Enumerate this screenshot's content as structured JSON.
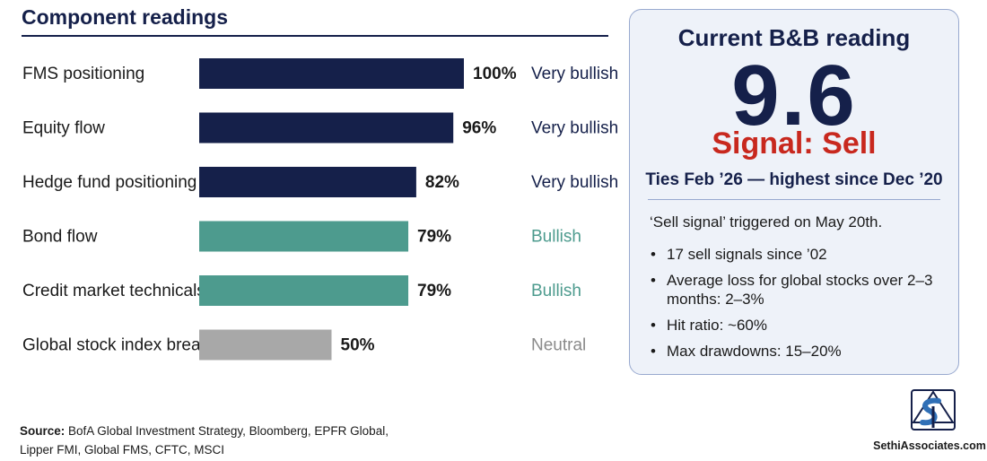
{
  "title": "Component readings",
  "chart_data": {
    "type": "bar",
    "orientation": "horizontal",
    "xlim": [
      0,
      100
    ],
    "categories": [
      "FMS positioning",
      "Equity flow",
      "Hedge fund positioning",
      "Bond flow",
      "Credit market technicals",
      "Global stock index breadth"
    ],
    "values": [
      100,
      96,
      82,
      79,
      79,
      50
    ],
    "value_labels": [
      "100%",
      "96%",
      "82%",
      "79%",
      "79%",
      "50%"
    ],
    "ratings": [
      "Very bullish",
      "Very bullish",
      "Very bullish",
      "Bullish",
      "Bullish",
      "Neutral"
    ],
    "rating_colors": {
      "Very bullish": "#15204a",
      "Bullish": "#4d9b8e",
      "Neutral": "#8a8a8a"
    },
    "bar_colors": {
      "Very bullish": "#15204a",
      "Bullish": "#4d9b8e",
      "Neutral": "#a8a8a8"
    }
  },
  "panel": {
    "heading": "Current B&B reading",
    "value": "9.6",
    "signal": "Signal: Sell",
    "subtitle": "Ties Feb ’26 — highest since Dec ’20",
    "lead": "‘Sell signal’ triggered on May 20th.",
    "bullets": [
      "17 sell signals since ’02",
      "Average loss for global stocks over 2–3 months: 2–3%",
      "Hit ratio: ~60%",
      "Max drawdowns: 15–20%"
    ]
  },
  "source": {
    "label": "Source:",
    "line1": "BofA Global Investment Strategy, Bloomberg, EPFR Global,",
    "line2": "Lipper FMI, Global FMS, CFTC, MSCI"
  },
  "logo": {
    "icon": "sethi-associates-logo-icon",
    "text": "SethiAssociates.com"
  }
}
